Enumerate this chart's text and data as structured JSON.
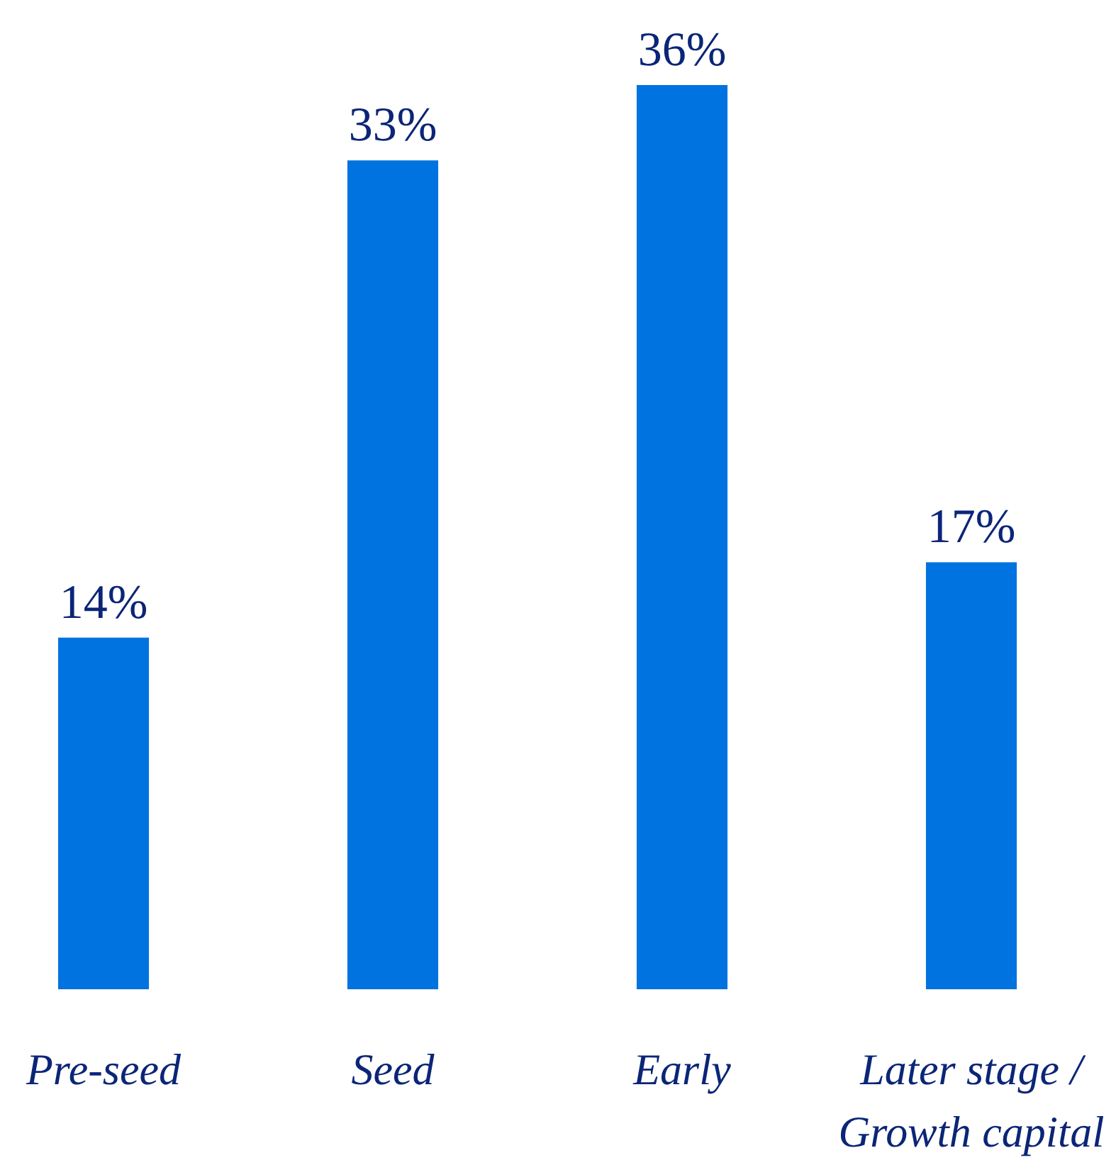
{
  "chart_data": {
    "type": "bar",
    "categories": [
      "Pre-seed",
      "Seed",
      "Early",
      "Later stage / Growth capital"
    ],
    "values": [
      14,
      33,
      36,
      17
    ],
    "color": "#0073e0",
    "data_labels": true,
    "value_labels": [
      "14%",
      "33%",
      "36%",
      "17%"
    ]
  }
}
